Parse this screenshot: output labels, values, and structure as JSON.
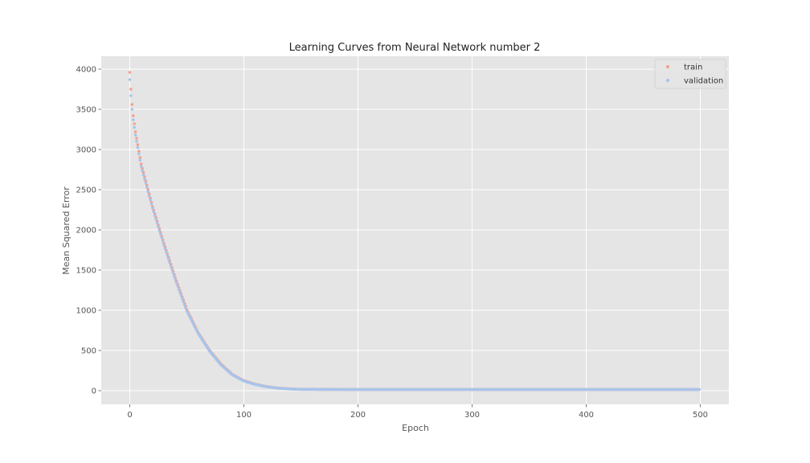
{
  "colors": {
    "plot_background": "#e5e5e5",
    "grid": "#ffffff",
    "train": "#f4a08f",
    "validation": "#a8c4ec"
  },
  "chart_data": {
    "type": "scatter",
    "title": "Learning Curves from Neural Network number 2",
    "xlabel": "Epoch",
    "ylabel": "Mean Squared Error",
    "xlim": [
      -25,
      525
    ],
    "ylim": [
      -170,
      4160
    ],
    "xticks": [
      0,
      100,
      200,
      300,
      400,
      500
    ],
    "yticks": [
      0,
      500,
      1000,
      1500,
      2000,
      2500,
      3000,
      3500,
      4000
    ],
    "grid": true,
    "legend_position": "top-right",
    "series": [
      {
        "name": "train",
        "color_key": "train",
        "x_range": [
          0,
          499
        ],
        "curve": "decay",
        "points": [
          [
            0,
            3960
          ],
          [
            1,
            3750
          ],
          [
            2,
            3560
          ],
          [
            3,
            3420
          ],
          [
            5,
            3220
          ],
          [
            10,
            2820
          ],
          [
            20,
            2290
          ],
          [
            30,
            1830
          ],
          [
            40,
            1400
          ],
          [
            50,
            1010
          ],
          [
            60,
            720
          ],
          [
            70,
            500
          ],
          [
            80,
            330
          ],
          [
            90,
            200
          ],
          [
            100,
            125
          ],
          [
            110,
            80
          ],
          [
            120,
            50
          ],
          [
            130,
            32
          ],
          [
            140,
            22
          ],
          [
            150,
            17
          ],
          [
            200,
            14
          ],
          [
            300,
            14
          ],
          [
            400,
            14
          ],
          [
            499,
            14
          ]
        ]
      },
      {
        "name": "validation",
        "color_key": "validation",
        "x_range": [
          0,
          499
        ],
        "curve": "decay",
        "points": [
          [
            0,
            3870
          ],
          [
            1,
            3670
          ],
          [
            2,
            3500
          ],
          [
            3,
            3370
          ],
          [
            5,
            3180
          ],
          [
            10,
            2790
          ],
          [
            20,
            2270
          ],
          [
            30,
            1810
          ],
          [
            40,
            1380
          ],
          [
            50,
            990
          ],
          [
            60,
            710
          ],
          [
            70,
            490
          ],
          [
            80,
            320
          ],
          [
            90,
            195
          ],
          [
            100,
            120
          ],
          [
            110,
            77
          ],
          [
            120,
            48
          ],
          [
            130,
            30
          ],
          [
            140,
            21
          ],
          [
            150,
            16
          ],
          [
            200,
            14
          ],
          [
            300,
            14
          ],
          [
            400,
            14
          ],
          [
            499,
            14
          ]
        ]
      }
    ]
  }
}
